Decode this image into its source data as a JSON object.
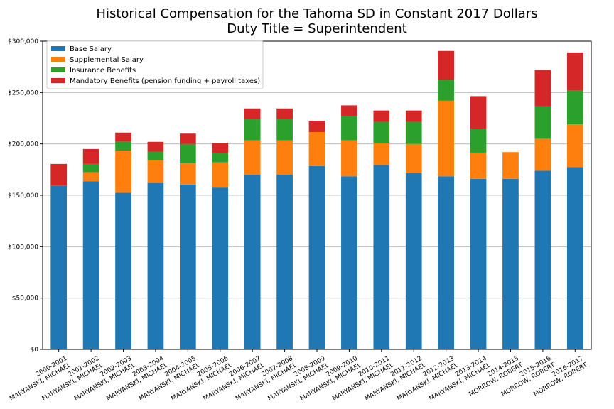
{
  "chart_data": {
    "type": "bar",
    "stacked": true,
    "title": "Historical Compensation for the Tahoma SD in Constant 2017 Dollars",
    "subtitle": "Duty Title = Superintendent",
    "xlabel": "",
    "ylabel": "",
    "ylim": [
      0,
      300000
    ],
    "y_ticks": [
      0,
      50000,
      100000,
      150000,
      200000,
      250000,
      300000
    ],
    "y_tick_labels": [
      "$0",
      "$50,000",
      "$100,000",
      "$150,000",
      "$200,000",
      "$250,000",
      "$300,000"
    ],
    "grid": "horizontal",
    "legend_position": "top-left",
    "categories": [
      [
        "2000-2001",
        "MARYANSKI, MICHAEL"
      ],
      [
        "2001-2002",
        "MARYANSKI, MICHAEL"
      ],
      [
        "2002-2003",
        "MARYANSKI, MICHAEL"
      ],
      [
        "2003-2004",
        "MARYANSKI, MICHAEL"
      ],
      [
        "2004-2005",
        "MARYANSKI, MICHAEL"
      ],
      [
        "2005-2006",
        "MARYANSKI, MICHAEL"
      ],
      [
        "2006-2007",
        "MARYANSKI, MICHAEL"
      ],
      [
        "2007-2008",
        "MARYANSKI, MICHAEL"
      ],
      [
        "2008-2009",
        "MARYANSKI, MICHAEL"
      ],
      [
        "2009-2010",
        "MARYANSKI, MICHAEL"
      ],
      [
        "2010-2011",
        "MARYANSKI, MICHAEL"
      ],
      [
        "2011-2012",
        "MARYANSKI, MICHAEL"
      ],
      [
        "2012-2013",
        "MARYANSKI, MICHAEL"
      ],
      [
        "2013-2014",
        "MARYANSKI, MICHAEL"
      ],
      [
        "2014-2015",
        "MORROW, ROBERT"
      ],
      [
        "2015-2016",
        "MORROW, ROBERT"
      ],
      [
        "2016-2017",
        "MORROW, ROBERT"
      ]
    ],
    "series": [
      {
        "name": "Base Salary",
        "color": "#1f77b4",
        "values": [
          159500,
          163500,
          152500,
          162000,
          160500,
          157500,
          170000,
          170000,
          178500,
          168500,
          179500,
          171500,
          168500,
          166000,
          166000,
          174000,
          177500
        ]
      },
      {
        "name": "Supplemental Salary",
        "color": "#ff7f0e",
        "values": [
          0,
          9000,
          41000,
          22000,
          20500,
          24500,
          33500,
          33500,
          33000,
          35000,
          21000,
          28500,
          73500,
          25500,
          26000,
          31000,
          41500
        ]
      },
      {
        "name": "Insurance Benefits",
        "color": "#2ca02c",
        "values": [
          0,
          8000,
          8500,
          8500,
          19000,
          9000,
          20500,
          20500,
          0,
          23500,
          21000,
          21500,
          20500,
          23000,
          0,
          31500,
          33000
        ]
      },
      {
        "name": "Mandatory Benefits (pension funding + payroll taxes)",
        "color": "#d62728",
        "values": [
          21000,
          14500,
          9000,
          9500,
          10000,
          10000,
          10500,
          10500,
          11000,
          10500,
          11000,
          11000,
          28000,
          32000,
          0,
          35500,
          37000
        ]
      }
    ]
  }
}
